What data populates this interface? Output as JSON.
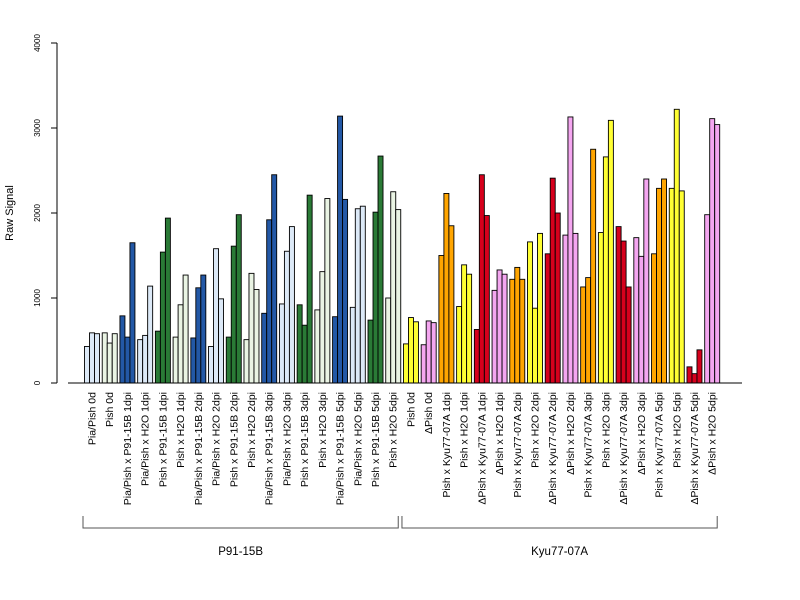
{
  "chart_data": {
    "type": "bar",
    "ylabel": "Raw Signal",
    "ylim": [
      0,
      4000
    ],
    "yticks": [
      0,
      1000,
      2000,
      3000,
      4000
    ],
    "bars_per_category": 3,
    "colors": {
      "pale_blue": "#dce9f7",
      "dark_blue": "#2358a6",
      "pale_green": "#eaf4e4",
      "dark_green": "#2a7a36",
      "yellow": "#ffff33",
      "pink": "#f4a6f0",
      "orange": "#ffa500",
      "red": "#d6001c"
    },
    "categories": [
      {
        "label": "Pia/Pish 0d",
        "color": "pale_blue",
        "values": [
          430,
          590,
          580
        ]
      },
      {
        "label": "Pish 0d",
        "color": "pale_green",
        "values": [
          590,
          470,
          580
        ]
      },
      {
        "label": "Pia/Pish x P91-15B 1dpi",
        "color": "dark_blue",
        "values": [
          790,
          540,
          1650
        ]
      },
      {
        "label": "Pia/Pish x H2O 1dpi",
        "color": "pale_blue",
        "values": [
          510,
          560,
          1140
        ]
      },
      {
        "label": "Pish x P91-15B 1dpi",
        "color": "dark_green",
        "values": [
          610,
          1540,
          1940
        ]
      },
      {
        "label": "Pish x H2O 1dpi",
        "color": "pale_green",
        "values": [
          540,
          920,
          1270
        ]
      },
      {
        "label": "Pia/Pish x P91-15B 2dpi",
        "color": "dark_blue",
        "values": [
          530,
          1120,
          1270
        ]
      },
      {
        "label": "Pia/Pish x H2O 2dpi",
        "color": "pale_blue",
        "values": [
          430,
          1580,
          990
        ]
      },
      {
        "label": "Pish x P91-15B 2dpi",
        "color": "dark_green",
        "values": [
          540,
          1610,
          1980
        ]
      },
      {
        "label": "Pish x H2O 2dpi",
        "color": "pale_green",
        "values": [
          510,
          1290,
          1100
        ]
      },
      {
        "label": "Pia/Pish x P91-15B 3dpi",
        "color": "dark_blue",
        "values": [
          820,
          1920,
          2450
        ]
      },
      {
        "label": "Pia/Pish x H2O 3dpi",
        "color": "pale_blue",
        "values": [
          930,
          1550,
          1840
        ]
      },
      {
        "label": "Pish x P91-15B 3dpi",
        "color": "dark_green",
        "values": [
          920,
          680,
          2210
        ]
      },
      {
        "label": "Pish x H2O 3dpi",
        "color": "pale_green",
        "values": [
          860,
          1310,
          2170
        ]
      },
      {
        "label": "Pia/Pish x P91-15B 5dpi",
        "color": "dark_blue",
        "values": [
          780,
          3140,
          2160
        ]
      },
      {
        "label": "Pia/Pish x H2O 5dpi",
        "color": "pale_blue",
        "values": [
          890,
          2050,
          2080
        ]
      },
      {
        "label": "Pish x P91-15B 5dpi",
        "color": "dark_green",
        "values": [
          740,
          2010,
          2670
        ]
      },
      {
        "label": "Pish x H2O 5dpi",
        "color": "pale_green",
        "values": [
          1000,
          2250,
          2040
        ]
      },
      {
        "label": "Pish 0d",
        "color": "yellow",
        "values": [
          460,
          770,
          720
        ]
      },
      {
        "label": "ΔPish 0d",
        "color": "pink",
        "values": [
          450,
          730,
          710
        ]
      },
      {
        "label": "Pish x Kyu77-07A 1dpi",
        "color": "orange",
        "values": [
          1500,
          2230,
          1850
        ]
      },
      {
        "label": "Pish x H2O 1dpi",
        "color": "yellow",
        "values": [
          900,
          1390,
          1280
        ]
      },
      {
        "label": "ΔPish x Kyu77-07A 1dpi",
        "color": "red",
        "values": [
          630,
          2450,
          1970
        ]
      },
      {
        "label": "ΔPish x H2O 1dpi",
        "color": "pink",
        "values": [
          1090,
          1330,
          1280
        ]
      },
      {
        "label": "Pish x Kyu77-07A 2dpi",
        "color": "orange",
        "values": [
          1220,
          1360,
          1220
        ]
      },
      {
        "label": "Pish x H2O 2dpi",
        "color": "yellow",
        "values": [
          1660,
          880,
          1760
        ]
      },
      {
        "label": "ΔPish x Kyu77-07A 2dpi",
        "color": "red",
        "values": [
          1520,
          2410,
          2000
        ]
      },
      {
        "label": "ΔPish x H2O 2dpi",
        "color": "pink",
        "values": [
          1740,
          3130,
          1760
        ]
      },
      {
        "label": "Pish x Kyu77-07A 3dpi",
        "color": "orange",
        "values": [
          1130,
          1240,
          2750
        ]
      },
      {
        "label": "Pish x H2O 3dpi",
        "color": "yellow",
        "values": [
          1770,
          2660,
          3090
        ]
      },
      {
        "label": "ΔPish x Kyu77-07A 3dpi",
        "color": "red",
        "values": [
          1840,
          1670,
          1130
        ]
      },
      {
        "label": "ΔPish x H2O 3dpi",
        "color": "pink",
        "values": [
          1710,
          1490,
          2400
        ]
      },
      {
        "label": "Pish x Kyu77-07A 5dpi",
        "color": "orange",
        "values": [
          1520,
          2290,
          2400
        ]
      },
      {
        "label": "Pish x H2O 5dpi",
        "color": "yellow",
        "values": [
          2290,
          3220,
          2260
        ]
      },
      {
        "label": "ΔPish x Kyu77-07A 5dpi",
        "color": "red",
        "values": [
          190,
          110,
          390
        ]
      },
      {
        "label": "ΔPish x H2O 5dpi",
        "color": "pink",
        "values": [
          1980,
          3110,
          3040
        ]
      }
    ],
    "groups": [
      {
        "label": "P91-15B",
        "start": 0,
        "end": 17
      },
      {
        "label": "Kyu77-07A",
        "start": 18,
        "end": 35
      }
    ]
  }
}
